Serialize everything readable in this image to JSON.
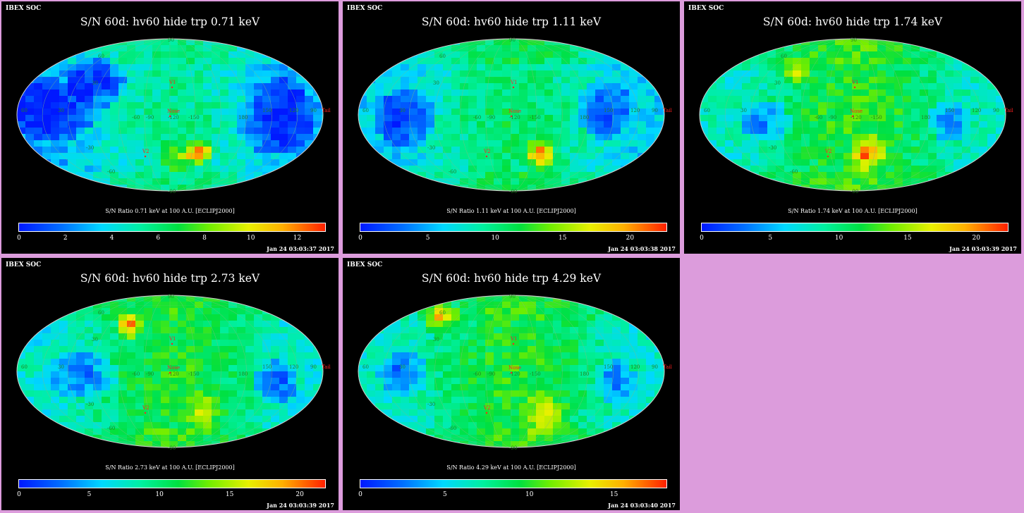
{
  "panels": [
    {
      "id": "p1",
      "logo": "IBEX SOC",
      "title": "S/N  60d: hv60 hide trp 0.71 keV",
      "colorbar_label": "S/N Ratio 0.71 keV at 100 A.U. [ECLIPJ2000]",
      "ticks": [
        "0",
        "2",
        "4",
        "6",
        "8",
        "10",
        "12"
      ],
      "tick_values": [
        0,
        2,
        4,
        6,
        8,
        10,
        12
      ],
      "scale_max": 13.2,
      "timestamp": "Jan 24 03:03:37 2017"
    },
    {
      "id": "p2",
      "logo": "IBEX SOC",
      "title": "S/N  60d: hv60 hide trp 1.11 keV",
      "colorbar_label": "S/N Ratio 1.11 keV at 100 A.U. [ECLIPJ2000]",
      "ticks": [
        "0",
        "5",
        "10",
        "15",
        "20"
      ],
      "tick_values": [
        0,
        5,
        10,
        15,
        20
      ],
      "scale_max": 22.7,
      "timestamp": "Jan 24 03:03:38 2017"
    },
    {
      "id": "p3",
      "logo": "IBEX SOC",
      "title": "S/N  60d: hv60 hide trp 1.74 keV",
      "colorbar_label": "S/N Ratio 1.74 keV at 100 A.U. [ECLIPJ2000]",
      "ticks": [
        "0",
        "5",
        "10",
        "15",
        "20"
      ],
      "tick_values": [
        0,
        5,
        10,
        15,
        20
      ],
      "scale_max": 22.3,
      "timestamp": "Jan 24 03:03:39 2017"
    },
    {
      "id": "p4",
      "logo": "IBEX SOC",
      "title": "S/N  60d: hv60 hide trp 2.73 keV",
      "colorbar_label": "S/N Ratio 2.73 keV at 100 A.U. [ECLIPJ2000]",
      "ticks": [
        "0",
        "5",
        "10",
        "15",
        "20"
      ],
      "tick_values": [
        0,
        5,
        10,
        15,
        20
      ],
      "scale_max": 21.8,
      "timestamp": "Jan 24 03:03:39 2017"
    },
    {
      "id": "p5",
      "logo": "IBEX SOC",
      "title": "S/N  60d: hv60 hide trp 4.29 keV",
      "colorbar_label": "S/N Ratio 4.29 keV at 100 A.U. [ECLIPJ2000]",
      "ticks": [
        "0",
        "5",
        "10",
        "15"
      ],
      "tick_values": [
        0,
        5,
        10,
        15
      ],
      "scale_max": 18.1,
      "timestamp": "Jan 24 03:03:40 2017"
    }
  ],
  "map_labels": {
    "markers": [
      "V1",
      "Nose",
      "V2",
      "Tail"
    ],
    "longitudes": [
      "60",
      "30",
      "-60",
      "-90",
      "-120",
      "-150",
      "180",
      "150",
      "120",
      "90"
    ],
    "latitudes": [
      "60",
      "30",
      "-30",
      "-60",
      "90",
      "-90"
    ]
  },
  "colors": {
    "background": "#dc9cdc",
    "panel": "#000000",
    "label_red": "#ff2020",
    "grid_label": "#20a020"
  },
  "chart_data": [
    {
      "type": "heatmap",
      "title": "S/N  60d: hv60 hide trp 0.71 keV",
      "colorbar": "S/N Ratio 0.71 keV at 100 A.U. [ECLIPJ2000]",
      "range": [
        0,
        13.2
      ],
      "projection": "mollweide",
      "description_values": {
        "min": 0.5,
        "max": 13
      }
    },
    {
      "type": "heatmap",
      "title": "S/N  60d: hv60 hide trp 1.11 keV",
      "colorbar": "S/N Ratio 1.11 keV at 100 A.U. [ECLIPJ2000]",
      "range": [
        0,
        22.7
      ],
      "projection": "mollweide",
      "description_values": {
        "min": 1,
        "max": 22
      }
    },
    {
      "type": "heatmap",
      "title": "S/N  60d: hv60 hide trp 1.74 keV",
      "colorbar": "S/N Ratio 1.74 keV at 100 A.U. [ECLIPJ2000]",
      "range": [
        0,
        22.3
      ],
      "projection": "mollweide",
      "description_values": {
        "min": 1,
        "max": 22
      }
    },
    {
      "type": "heatmap",
      "title": "S/N  60d: hv60 hide trp 2.73 keV",
      "colorbar": "S/N Ratio 2.73 keV at 100 A.U. [ECLIPJ2000]",
      "range": [
        0,
        21.8
      ],
      "projection": "mollweide",
      "description_values": {
        "min": 1,
        "max": 21
      }
    },
    {
      "type": "heatmap",
      "title": "S/N  60d: hv60 hide trp 4.29 keV",
      "colorbar": "S/N Ratio 4.29 keV at 100 A.U. [ECLIPJ2000]",
      "range": [
        0,
        18.1
      ],
      "projection": "mollweide",
      "description_values": {
        "min": 1,
        "max": 18
      }
    }
  ]
}
